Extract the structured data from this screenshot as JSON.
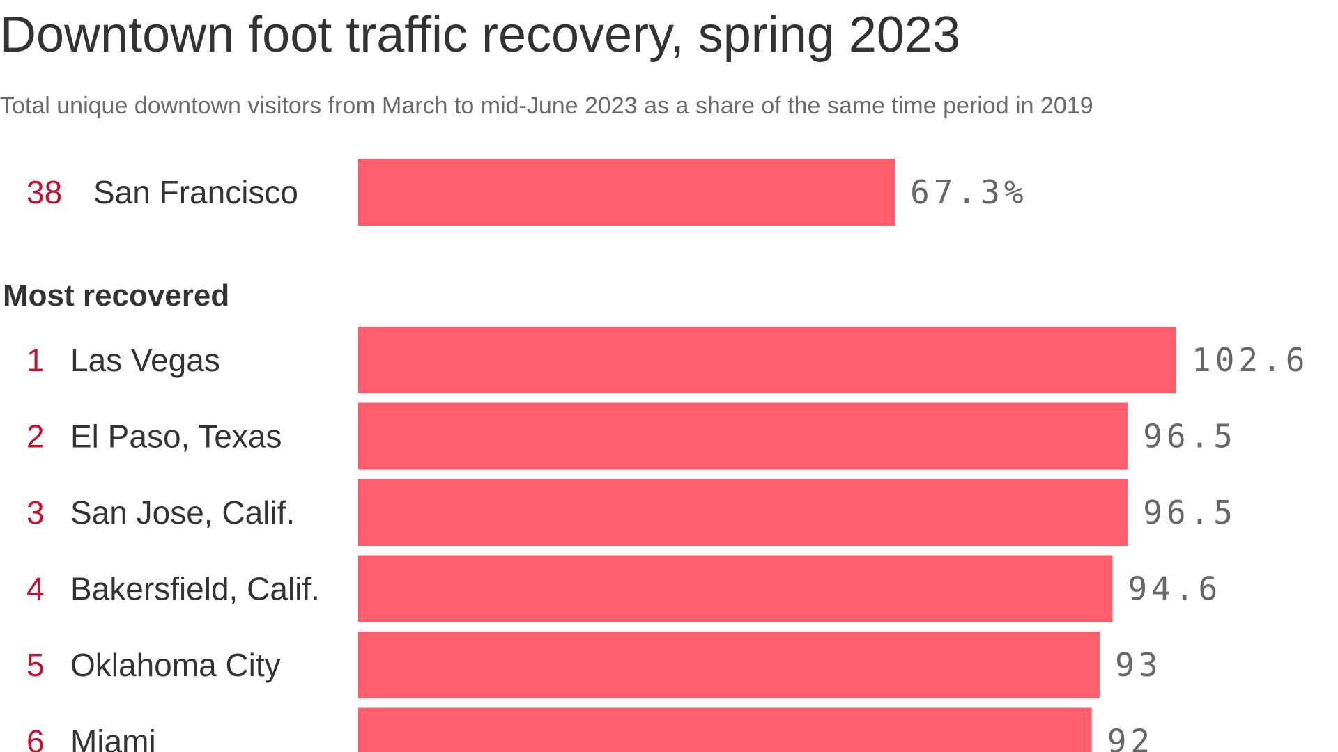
{
  "title": "Downtown foot traffic recovery, spring 2023",
  "subtitle": "Total unique downtown visitors from March to mid-June 2023 as a share of the same time period in 2019",
  "section_label": "Most recovered",
  "colors": {
    "bar": "#ff5f6d",
    "rank": "#c8102e",
    "text": "#333333",
    "value": "#666666",
    "subtitle": "#6a6a6a"
  },
  "chart_data": {
    "type": "bar",
    "orientation": "horizontal",
    "title": "Downtown foot traffic recovery, spring 2023",
    "subtitle": "Total unique downtown visitors from March to mid-June 2023 as a share of the same time period in 2019",
    "xlim": [
      0,
      102.6
    ],
    "highlight": {
      "rank": "38",
      "city": "San Francisco",
      "value": 67.3,
      "label": "67.3%"
    },
    "section": "Most recovered",
    "rows": [
      {
        "rank": "1",
        "city": "Las Vegas",
        "value": 102.6,
        "label": "102.6"
      },
      {
        "rank": "2",
        "city": "El Paso, Texas",
        "value": 96.5,
        "label": "96.5"
      },
      {
        "rank": "3",
        "city": "San Jose, Calif.",
        "value": 96.5,
        "label": "96.5"
      },
      {
        "rank": "4",
        "city": "Bakersfield, Calif.",
        "value": 94.6,
        "label": "94.6"
      },
      {
        "rank": "5",
        "city": "Oklahoma City",
        "value": 93,
        "label": "93"
      },
      {
        "rank": "6",
        "city": "Miami",
        "value": 92,
        "label": "92"
      }
    ]
  }
}
